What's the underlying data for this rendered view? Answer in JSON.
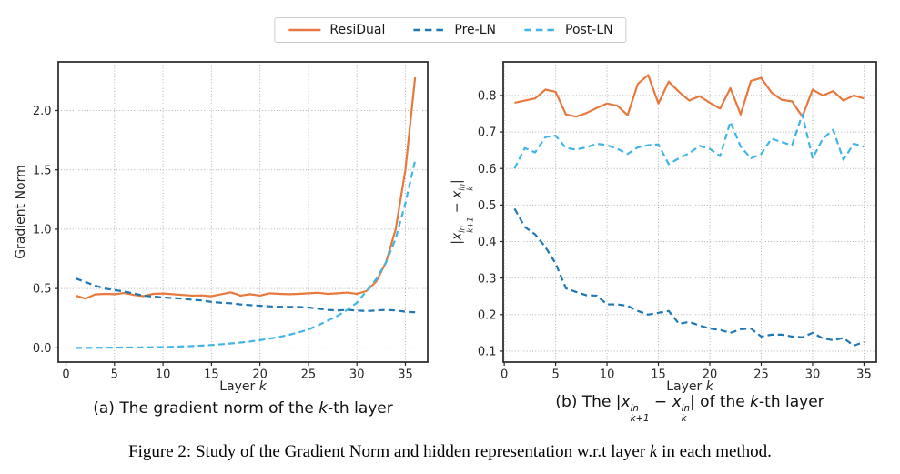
{
  "legend": {
    "items": [
      {
        "label": "ResiDual",
        "color": "#e8793e",
        "line_style": "solid"
      },
      {
        "label": "Pre-LN",
        "color": "#1f77b4",
        "line_style": "dashed"
      },
      {
        "label": "Post-LN",
        "color": "#41b6e6",
        "line_style": "dashed"
      }
    ]
  },
  "text": {
    "xlabel": [
      {
        "t": "Layer "
      },
      {
        "t": "k",
        "i": true
      }
    ],
    "ylabel_a": [
      {
        "t": "Gradient Norm"
      }
    ],
    "ylabel_b": [
      {
        "t": "|"
      },
      {
        "t": "x",
        "i": true,
        "sup": "ln",
        "sub": "k+1"
      },
      {
        "t": " − "
      },
      {
        "t": "x",
        "i": true,
        "sup": "ln",
        "sub": "k"
      },
      {
        "t": "|"
      }
    ],
    "caption_a": [
      {
        "t": "(a) The gradient norm of the "
      },
      {
        "t": "k",
        "i": true
      },
      {
        "t": "-th layer"
      }
    ],
    "caption_b": [
      {
        "t": "(b) The |"
      },
      {
        "t": "x",
        "i": true,
        "sup": "ln",
        "sub": "k+1"
      },
      {
        "t": " − "
      },
      {
        "t": "x",
        "i": true,
        "sup": "ln",
        "sub": "k"
      },
      {
        "t": "| of the "
      },
      {
        "t": "k",
        "i": true
      },
      {
        "t": "-th layer"
      }
    ],
    "figure_caption": [
      {
        "t": "Figure 2: Study of the Gradient Norm and hidden representation w.r.t layer "
      },
      {
        "t": "k",
        "i": true
      },
      {
        "t": " in each method."
      }
    ]
  },
  "chart_data": [
    {
      "type": "line",
      "subplot": "a",
      "title": "",
      "xlabel": "Layer k",
      "ylabel": "Gradient Norm",
      "xlim": [
        -0.8,
        37.3
      ],
      "ylim": [
        -0.12,
        2.41
      ],
      "xticks": [
        0,
        5,
        10,
        15,
        20,
        25,
        30,
        35
      ],
      "yticks": [
        0.0,
        0.5,
        1.0,
        1.5,
        2.0
      ],
      "ytick_labels": [
        "0.0",
        "0.5",
        "1.0",
        "1.5",
        "2.0"
      ],
      "grid": true,
      "legend_position": "above-figure",
      "x_start": 1,
      "series": [
        {
          "name": "ResiDual",
          "color": "#e8793e",
          "line_style": "solid",
          "values": [
            0.44,
            0.415,
            0.45,
            0.455,
            0.452,
            0.462,
            0.446,
            0.436,
            0.455,
            0.458,
            0.452,
            0.446,
            0.44,
            0.442,
            0.435,
            0.452,
            0.468,
            0.44,
            0.452,
            0.44,
            0.46,
            0.455,
            0.452,
            0.455,
            0.46,
            0.464,
            0.455,
            0.46,
            0.466,
            0.455,
            0.48,
            0.56,
            0.72,
            1.0,
            1.5,
            2.28
          ]
        },
        {
          "name": "Pre-LN",
          "color": "#1f77b4",
          "line_style": "dashed",
          "values": [
            0.585,
            0.555,
            0.525,
            0.5,
            0.487,
            0.475,
            0.458,
            0.44,
            0.432,
            0.425,
            0.42,
            0.415,
            0.405,
            0.4,
            0.387,
            0.38,
            0.376,
            0.366,
            0.36,
            0.355,
            0.35,
            0.346,
            0.345,
            0.345,
            0.34,
            0.33,
            0.32,
            0.315,
            0.32,
            0.315,
            0.31,
            0.315,
            0.32,
            0.315,
            0.305,
            0.3
          ]
        },
        {
          "name": "Post-LN",
          "color": "#41b6e6",
          "line_style": "dashed",
          "values": [
            0.0,
            0.0,
            0.001,
            0.001,
            0.002,
            0.003,
            0.003,
            0.004,
            0.005,
            0.007,
            0.009,
            0.012,
            0.015,
            0.019,
            0.024,
            0.03,
            0.037,
            0.045,
            0.054,
            0.065,
            0.078,
            0.092,
            0.11,
            0.13,
            0.155,
            0.19,
            0.23,
            0.27,
            0.32,
            0.38,
            0.48,
            0.58,
            0.72,
            0.92,
            1.22,
            1.58
          ]
        }
      ]
    },
    {
      "type": "line",
      "subplot": "b",
      "title": "",
      "xlabel": "Layer k",
      "ylabel": "|x_{k+1}^{ln} − x_{k}^{ln}|",
      "xlim": [
        -0.1,
        36.2
      ],
      "ylim": [
        0.07,
        0.892
      ],
      "xticks": [
        0,
        5,
        10,
        15,
        20,
        25,
        30,
        35
      ],
      "yticks": [
        0.1,
        0.2,
        0.3,
        0.4,
        0.5,
        0.6,
        0.7,
        0.8
      ],
      "ytick_labels": [
        "0.1",
        "0.2",
        "0.3",
        "0.4",
        "0.5",
        "0.6",
        "0.7",
        "0.8"
      ],
      "grid": true,
      "legend_position": "above-figure",
      "x_start": 1,
      "series": [
        {
          "name": "ResiDual",
          "color": "#e8793e",
          "line_style": "solid",
          "values": [
            0.78,
            0.786,
            0.792,
            0.816,
            0.81,
            0.748,
            0.742,
            0.752,
            0.766,
            0.778,
            0.772,
            0.746,
            0.832,
            0.856,
            0.778,
            0.838,
            0.81,
            0.786,
            0.798,
            0.78,
            0.764,
            0.82,
            0.748,
            0.84,
            0.848,
            0.808,
            0.788,
            0.784,
            0.742,
            0.816,
            0.8,
            0.812,
            0.786,
            0.8,
            0.792
          ]
        },
        {
          "name": "Pre-LN",
          "color": "#1f77b4",
          "line_style": "dashed",
          "values": [
            0.49,
            0.44,
            0.42,
            0.385,
            0.34,
            0.272,
            0.262,
            0.253,
            0.252,
            0.228,
            0.228,
            0.224,
            0.21,
            0.2,
            0.205,
            0.21,
            0.175,
            0.18,
            0.17,
            0.162,
            0.158,
            0.15,
            0.16,
            0.162,
            0.14,
            0.145,
            0.145,
            0.14,
            0.138,
            0.15,
            0.135,
            0.13,
            0.136,
            0.115,
            0.125
          ]
        },
        {
          "name": "Post-LN",
          "color": "#41b6e6",
          "line_style": "dashed",
          "values": [
            0.6,
            0.656,
            0.644,
            0.686,
            0.69,
            0.656,
            0.652,
            0.658,
            0.668,
            0.664,
            0.654,
            0.64,
            0.658,
            0.664,
            0.666,
            0.612,
            0.628,
            0.642,
            0.662,
            0.654,
            0.634,
            0.728,
            0.66,
            0.628,
            0.64,
            0.682,
            0.672,
            0.664,
            0.748,
            0.628,
            0.682,
            0.706,
            0.624,
            0.668,
            0.66
          ]
        }
      ]
    }
  ]
}
